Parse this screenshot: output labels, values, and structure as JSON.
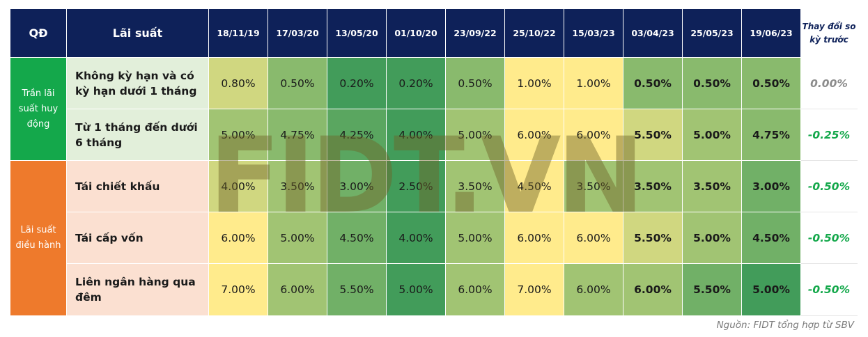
{
  "chart_data": {
    "type": "table",
    "header": {
      "qd": "QĐ",
      "lai_suat": "Lãi suất",
      "dates": [
        "18/11/19",
        "17/03/20",
        "13/05/20",
        "01/10/20",
        "23/09/22",
        "25/10/22",
        "15/03/23",
        "03/04/23",
        "25/05/23",
        "19/06/23"
      ],
      "change": "Thay đổi so kỳ trước"
    },
    "groups": [
      {
        "label": "Trần lãi suất huy động",
        "color": "#14a84b",
        "label_bg": "#e2efda",
        "rows": [
          {
            "label": "Không kỳ hạn và có kỳ hạn dưới 1 tháng",
            "values": [
              "0.80%",
              "0.50%",
              "0.20%",
              "0.20%",
              "0.50%",
              "1.00%",
              "1.00%",
              "0.50%",
              "0.50%",
              "0.50%"
            ],
            "change": "0.00%"
          },
          {
            "label": "Từ 1 tháng đến dưới 6 tháng",
            "values": [
              "5.00%",
              "4.75%",
              "4.25%",
              "4.00%",
              "5.00%",
              "6.00%",
              "6.00%",
              "5.50%",
              "5.00%",
              "4.75%"
            ],
            "change": "-0.25%"
          }
        ]
      },
      {
        "label": "Lãi suất điều hành",
        "color": "#ee7a2c",
        "label_bg": "#fbe0d1",
        "rows": [
          {
            "label": "Tái chiết khấu",
            "values": [
              "4.00%",
              "3.50%",
              "3.00%",
              "2.50%",
              "3.50%",
              "4.50%",
              "3.50%",
              "3.50%",
              "3.50%",
              "3.00%"
            ],
            "change": "-0.50%"
          },
          {
            "label": "Tái cấp vốn",
            "values": [
              "6.00%",
              "5.00%",
              "4.50%",
              "4.00%",
              "5.00%",
              "6.00%",
              "6.00%",
              "5.50%",
              "5.00%",
              "4.50%"
            ],
            "change": "-0.50%"
          },
          {
            "label": "Liên ngân hàng qua đêm",
            "values": [
              "7.00%",
              "6.00%",
              "5.50%",
              "5.00%",
              "6.00%",
              "7.00%",
              "6.00%",
              "6.00%",
              "5.50%",
              "5.00%"
            ],
            "change": "-0.50%"
          }
        ]
      }
    ],
    "bold_from_column": 7,
    "colors": {
      "header_bg": "#0e2159",
      "change_header_text": "#0e2159",
      "change_zero": "#8c8c8c",
      "change_negative": "#14a84b"
    }
  },
  "watermark": "FIDT.VN",
  "source": "Nguồn: FIDT tổng hợp từ SBV"
}
